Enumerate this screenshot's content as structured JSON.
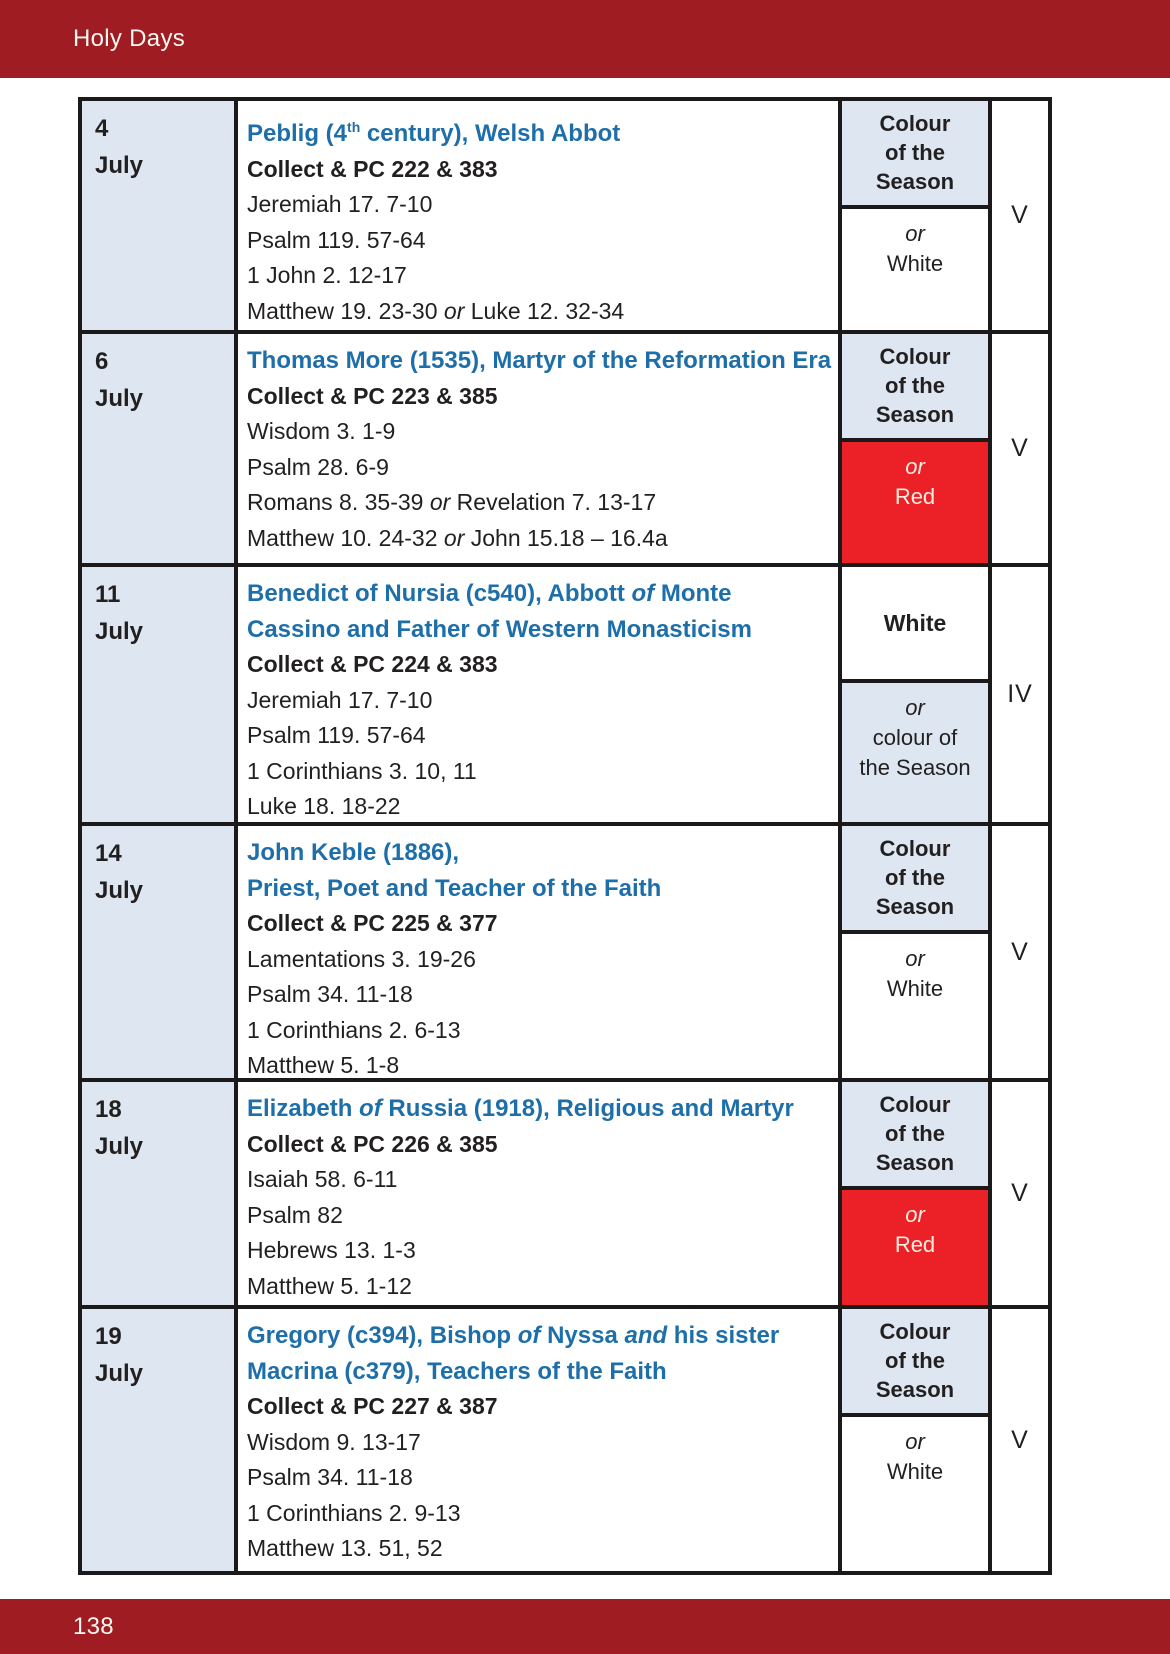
{
  "page": {
    "header": "Holy Days",
    "page_number": "138"
  },
  "colors": {
    "bar": "#9E1C22",
    "bluefill": "#DEE7F1",
    "redfill": "#EC2127",
    "bluetitle": "#1E6FA9",
    "ink": "#221F20",
    "border": "#1C191A",
    "cream": "#F6EEE1"
  },
  "rows": [
    {
      "day": "4",
      "month": "July",
      "title": {
        "a": "Peblig (4",
        "sup": "th",
        "b": " century), Welsh Abbot"
      },
      "collect": "Collect & PC 222 & 383",
      "readings": [
        {
          "a": "Jeremiah 17. 7-10"
        },
        {
          "a": "Psalm 119. 57-64"
        },
        {
          "a": "1 John 2. 12-17"
        },
        {
          "a": "Matthew 19. 23-30 ",
          "or": "or",
          "b": " Luke 12. 32-34"
        }
      ],
      "colour": {
        "top1": "Colour",
        "top2": "of the",
        "top3": "Season",
        "or": "or",
        "bottom": "White"
      },
      "numeral": "V"
    },
    {
      "day": "6",
      "month": "July",
      "title": {
        "a": "Thomas More (1535), Martyr of the Reformation Era"
      },
      "collect": "Collect & PC 223 & 385",
      "readings": [
        {
          "a": "Wisdom 3. 1-9"
        },
        {
          "a": "Psalm 28. 6-9"
        },
        {
          "a": "Romans 8. 35-39 ",
          "or": "or",
          "b": " Revelation 7. 13-17"
        },
        {
          "a": "Matthew 10. 24-32 ",
          "or": "or",
          "b": " John 15.18 – 16.4a"
        }
      ],
      "colour": {
        "top1": "Colour",
        "top2": "of the",
        "top3": "Season",
        "or": "or",
        "bottom": "Red"
      },
      "numeral": "V"
    },
    {
      "day": "11",
      "month": "July",
      "title": {
        "a": "Benedict of Nursia (c540), Abbott ",
        "it": "of",
        "b": " Monte",
        "l2": "Cassino and Father of Western Monasticism"
      },
      "collect": "Collect & PC 224 & 383",
      "readings": [
        {
          "a": "Jeremiah 17. 7-10"
        },
        {
          "a": "Psalm 119. 57-64"
        },
        {
          "a": "1 Corinthians 3. 10, 11"
        },
        {
          "a": "Luke 18. 18-22"
        }
      ],
      "colour": {
        "top1": "White",
        "or": "or",
        "bottom": "colour of",
        "bottom2": "the Season"
      },
      "numeral": "IV"
    },
    {
      "day": "14",
      "month": "July",
      "title": {
        "a": "John Keble (1886),",
        "l2": "Priest, Poet and Teacher of the Faith"
      },
      "collect": "Collect & PC 225 & 377",
      "readings": [
        {
          "a": "Lamentations 3. 19-26"
        },
        {
          "a": "Psalm 34. 11-18"
        },
        {
          "a": "1 Corinthians 2. 6-13"
        },
        {
          "a": "Matthew 5. 1-8"
        }
      ],
      "colour": {
        "top1": "Colour",
        "top2": "of the",
        "top3": "Season",
        "or": "or",
        "bottom": "White"
      },
      "numeral": "V"
    },
    {
      "day": "18",
      "month": "July",
      "title": {
        "a": "Elizabeth ",
        "it": "of",
        "b": " Russia (1918), Religious and Martyr"
      },
      "collect": "Collect & PC 226 & 385",
      "readings": [
        {
          "a": "Isaiah 58. 6-11"
        },
        {
          "a": "Psalm 82"
        },
        {
          "a": "Hebrews 13. 1-3"
        },
        {
          "a": "Matthew 5. 1-12"
        }
      ],
      "colour": {
        "top1": "Colour",
        "top2": "of the",
        "top3": "Season",
        "or": "or",
        "bottom": "Red"
      },
      "numeral": "V"
    },
    {
      "day": "19",
      "month": "July",
      "title": {
        "a": "Gregory (c394), Bishop ",
        "it": "of",
        "b": " Nyssa ",
        "it2": "and",
        "c": " his sister",
        "l2": "Macrina (c379), Teachers of the Faith"
      },
      "collect": "Collect & PC 227 & 387",
      "readings": [
        {
          "a": "Wisdom 9. 13-17"
        },
        {
          "a": "Psalm 34. 11-18"
        },
        {
          "a": "1 Corinthians 2. 9-13"
        },
        {
          "a": "Matthew 13. 51, 52"
        }
      ],
      "colour": {
        "top1": "Colour",
        "top2": "of the",
        "top3": "Season",
        "or": "or",
        "bottom": "White"
      },
      "numeral": "V"
    }
  ]
}
